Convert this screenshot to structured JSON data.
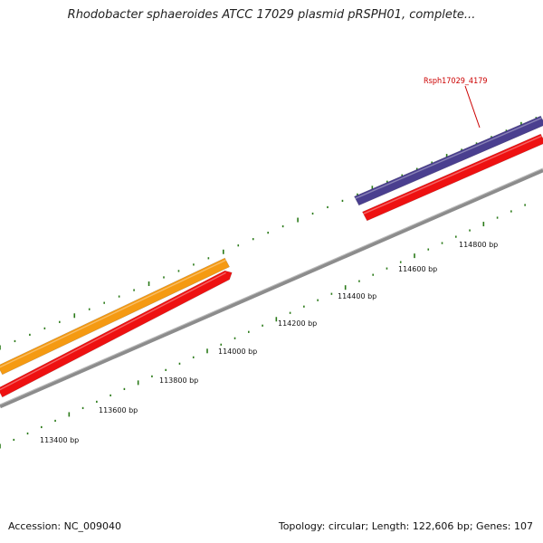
{
  "title": "Rhodobacter sphaeroides ATCC 17029 plasmid pRSPH01, complete...",
  "gene_label": "Rsph17029_4179",
  "scale_labels": [
    "113400 bp",
    "113600 bp",
    "113800 bp",
    "114000 bp",
    "114200 bp",
    "114400 bp",
    "114600 bp",
    "114800 bp"
  ],
  "footer": {
    "accession": "Accession: NC_009040",
    "summary": "Topology: circular; Length: 122,606 bp; Genes: 107"
  },
  "colors": {
    "backbone": "#8c8c8c",
    "gene_red": "#ee1111",
    "gene_orange": "#f59a12",
    "gene_purple": "#4a3f8f",
    "tick_green": "#2a7a18",
    "label_red": "#cc0000"
  },
  "features": [
    {
      "name": "gene-orange",
      "strand": "forward",
      "color": "gene_orange"
    },
    {
      "name": "gene-red-left",
      "strand": "reverse",
      "color": "gene_red"
    },
    {
      "name": "gene-purple",
      "strand": "forward",
      "color": "gene_purple",
      "label": "Rsph17029_4179"
    },
    {
      "name": "gene-red-right",
      "strand": "reverse",
      "color": "gene_red"
    }
  ]
}
